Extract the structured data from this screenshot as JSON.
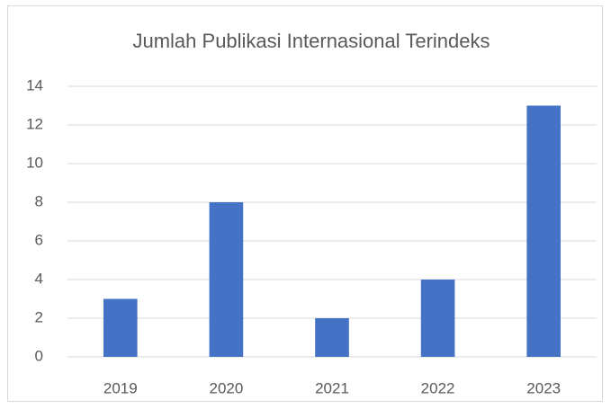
{
  "chart_data": {
    "type": "bar",
    "title": "Jumlah Publikasi Internasional Terindeks",
    "categories": [
      "2019",
      "2020",
      "2021",
      "2022",
      "2023"
    ],
    "values": [
      3,
      8,
      2,
      4,
      13
    ],
    "color": "#4472c4",
    "ylim": [
      0,
      14
    ],
    "yticks": [
      0,
      2,
      4,
      6,
      8,
      10,
      12,
      14
    ],
    "grid": true
  }
}
